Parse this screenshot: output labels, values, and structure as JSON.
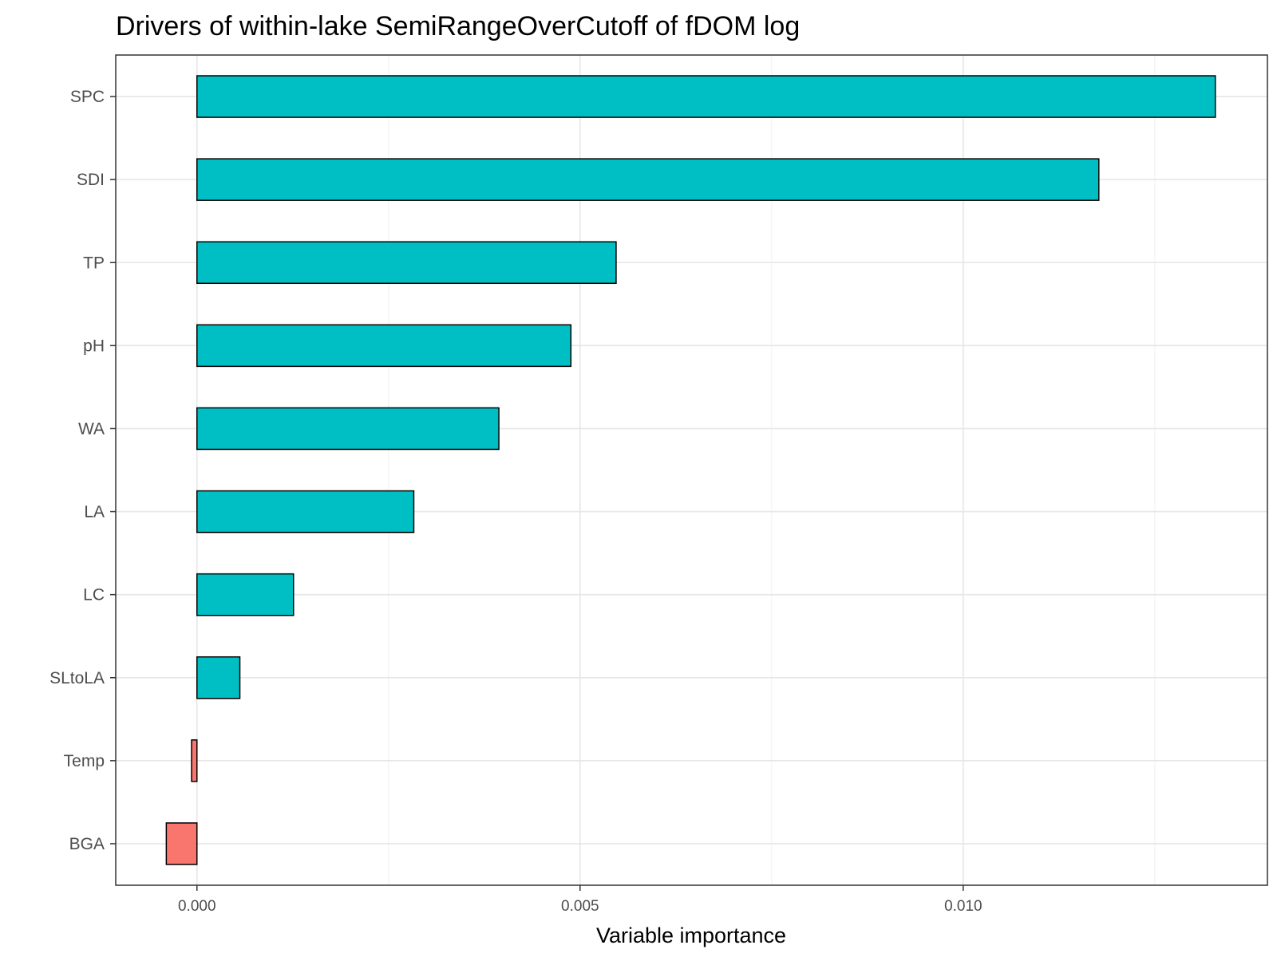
{
  "chart_data": {
    "type": "bar",
    "orientation": "horizontal",
    "title": "Drivers of within-lake SemiRangeOverCutoff of fDOM log",
    "xlabel": "Variable importance",
    "ylabel": "",
    "categories": [
      "SPC",
      "SDI",
      "TP",
      "pH",
      "WA",
      "LA",
      "LC",
      "SLtoLA",
      "Temp",
      "BGA"
    ],
    "values": [
      0.01329,
      0.01177,
      0.00547,
      0.00488,
      0.00394,
      0.00283,
      0.00126,
      0.00056,
      -7e-05,
      -0.0004
    ],
    "xlim": [
      -0.00106,
      0.01397
    ],
    "xticks": [
      0.0,
      0.005,
      0.01
    ],
    "xtick_labels": [
      "0.000",
      "0.005",
      "0.010"
    ],
    "grid": true,
    "colors": {
      "positive": "#00BFC4",
      "negative": "#F8766D",
      "outline": "#000000"
    }
  }
}
